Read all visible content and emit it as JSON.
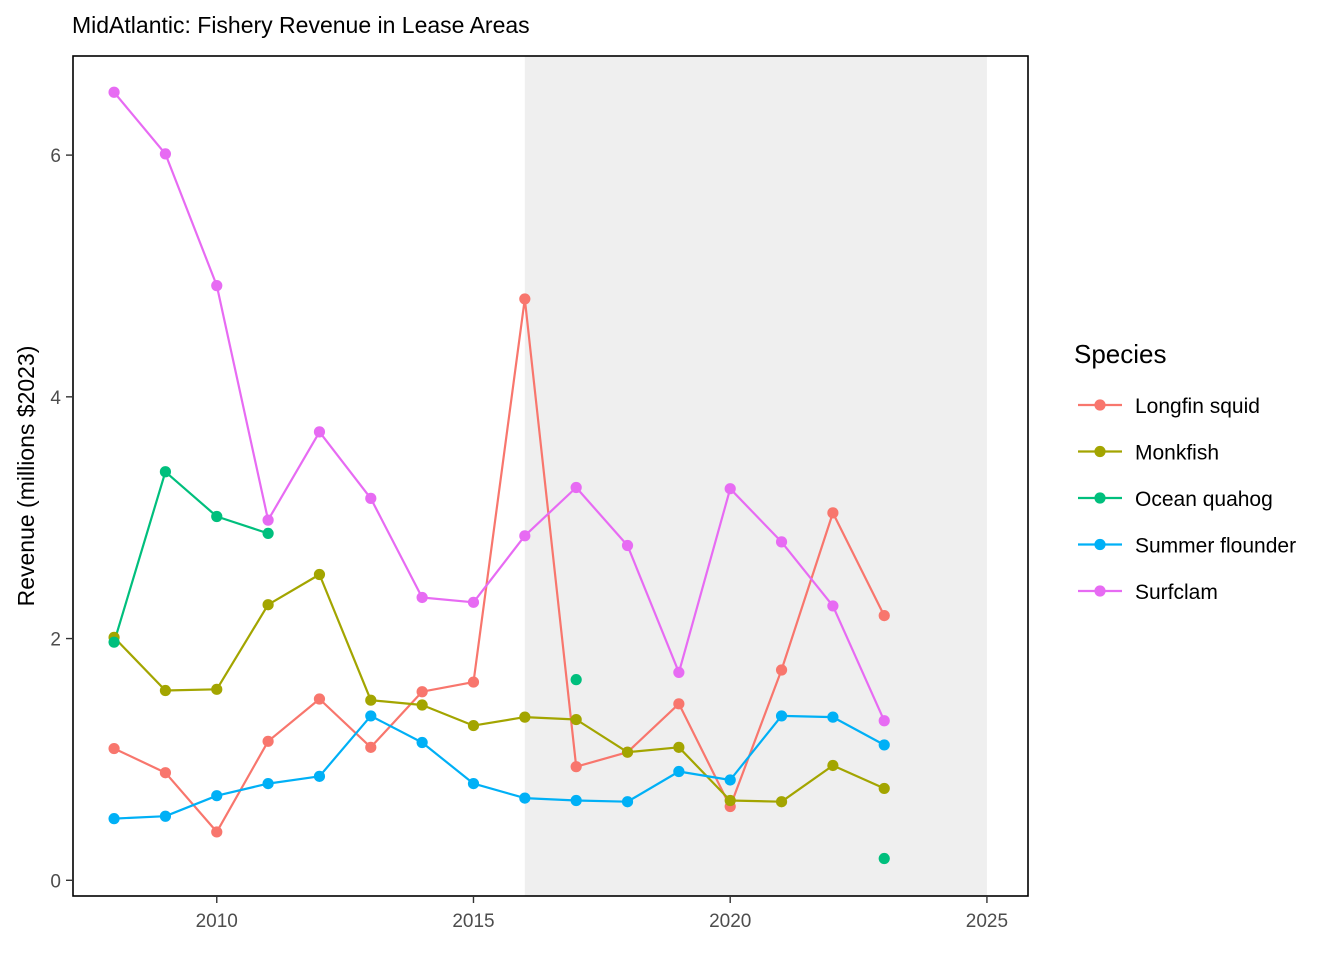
{
  "chart_data": {
    "type": "line",
    "title": "MidAtlantic: Fishery Revenue in Lease Areas",
    "xlabel": "",
    "ylabel": "Revenue (millions $2023)",
    "xlim": [
      2007.2,
      2025.8
    ],
    "ylim": [
      -0.13,
      6.82
    ],
    "xticks": [
      2010,
      2015,
      2020,
      2025
    ],
    "yticks": [
      0,
      2,
      4,
      6
    ],
    "grid": false,
    "shaded_region": {
      "x_start": 2016,
      "x_end": 2025,
      "color": "#efefef"
    },
    "legend": {
      "title": "Species",
      "position": "right"
    },
    "series": [
      {
        "name": "Longfin squid",
        "color": "#F8766D",
        "points": [
          [
            2008,
            1.09
          ],
          [
            2009,
            0.89
          ],
          [
            2010,
            0.4
          ],
          [
            2011,
            1.15
          ],
          [
            2012,
            1.5
          ],
          [
            2013,
            1.1
          ],
          [
            2014,
            1.56
          ],
          [
            2015,
            1.64
          ],
          [
            2016,
            4.81
          ],
          [
            2017,
            0.94
          ],
          [
            2018,
            1.06
          ],
          [
            2019,
            1.46
          ],
          [
            2020,
            0.61
          ],
          [
            2021,
            1.74
          ],
          [
            2022,
            3.04
          ],
          [
            2023,
            2.19
          ]
        ]
      },
      {
        "name": "Monkfish",
        "color": "#A3A500",
        "points": [
          [
            2008,
            2.01
          ],
          [
            2009,
            1.57
          ],
          [
            2010,
            1.58
          ],
          [
            2011,
            2.28
          ],
          [
            2012,
            2.53
          ],
          [
            2013,
            1.49
          ],
          [
            2014,
            1.45
          ],
          [
            2015,
            1.28
          ],
          [
            2016,
            1.35
          ],
          [
            2017,
            1.33
          ],
          [
            2018,
            1.06
          ],
          [
            2019,
            1.1
          ],
          [
            2020,
            0.66
          ],
          [
            2021,
            0.65
          ],
          [
            2022,
            0.95
          ],
          [
            2023,
            0.76
          ]
        ]
      },
      {
        "name": "Ocean quahog",
        "color": "#00BF7D",
        "points": [
          [
            2008,
            1.97
          ],
          [
            2009,
            3.38
          ],
          [
            2010,
            3.01
          ],
          [
            2011,
            2.87
          ],
          [
            2017,
            1.66
          ],
          [
            2023,
            0.18
          ]
        ],
        "line_segments": [
          [
            2008,
            2009,
            2010,
            2011
          ]
        ]
      },
      {
        "name": "Summer flounder",
        "color": "#00B0F6",
        "points": [
          [
            2008,
            0.51
          ],
          [
            2009,
            0.53
          ],
          [
            2010,
            0.7
          ],
          [
            2011,
            0.8
          ],
          [
            2012,
            0.86
          ],
          [
            2013,
            1.36
          ],
          [
            2014,
            1.14
          ],
          [
            2015,
            0.8
          ],
          [
            2016,
            0.68
          ],
          [
            2017,
            0.66
          ],
          [
            2018,
            0.65
          ],
          [
            2019,
            0.9
          ],
          [
            2020,
            0.83
          ],
          [
            2021,
            1.36
          ],
          [
            2022,
            1.35
          ],
          [
            2023,
            1.12
          ]
        ]
      },
      {
        "name": "Surfclam",
        "color": "#E76BF3",
        "points": [
          [
            2008,
            6.52
          ],
          [
            2009,
            6.01
          ],
          [
            2010,
            4.92
          ],
          [
            2011,
            2.98
          ],
          [
            2012,
            3.71
          ],
          [
            2013,
            3.16
          ],
          [
            2014,
            2.34
          ],
          [
            2015,
            2.3
          ],
          [
            2016,
            2.85
          ],
          [
            2017,
            3.25
          ],
          [
            2018,
            2.77
          ],
          [
            2019,
            1.72
          ],
          [
            2020,
            3.24
          ],
          [
            2021,
            2.8
          ],
          [
            2022,
            2.27
          ],
          [
            2023,
            1.32
          ]
        ]
      }
    ]
  }
}
